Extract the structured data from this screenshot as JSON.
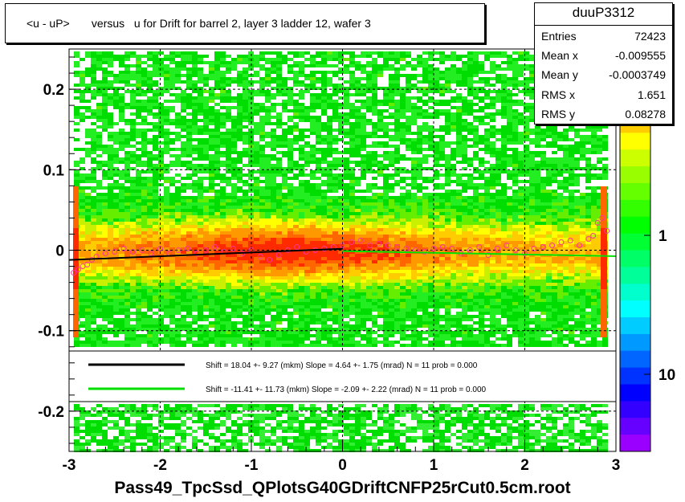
{
  "title": "<u - uP>       versus   u for Drift for barrel 2, layer 3 ladder 12, wafer 3",
  "stats": {
    "name": "duuP3312",
    "rows": [
      {
        "key": "Entries",
        "value": "72423"
      },
      {
        "key": "Mean x",
        "value": "-0.009555"
      },
      {
        "key": "Mean y",
        "value": "-0.0003749"
      },
      {
        "key": "RMS x",
        "value": "1.651"
      },
      {
        "key": "RMS y",
        "value": "0.08278"
      }
    ]
  },
  "xlabel": "Pass49_TpcSsd_QPlotsG40GDriftCNFP25rCut0.5cm.root",
  "legend": [
    {
      "text": "Shift =    18.04 +- 9.27 (mkm) Slope =     4.64 +- 1.75 (mrad)  N = 11 prob = 0.000",
      "color": "#000000"
    },
    {
      "text": "Shift =   -11.41 +- 11.73 (mkm) Slope =    -2.09 +- 2.22 (mrad)  N = 11 prob = 0.000",
      "color": "#00e000"
    }
  ],
  "chart_data": {
    "type": "heatmap",
    "xlim": [
      -3,
      3
    ],
    "ylim": [
      -0.25,
      0.25
    ],
    "x_ticks": [
      "-3",
      "-2",
      "-1",
      "0",
      "1",
      "2",
      "3"
    ],
    "y_ticks": [
      "-0.2",
      "-0.1",
      "0",
      "0.1",
      "0.2"
    ],
    "z_ticks": [
      "1",
      "10"
    ],
    "grid": true,
    "colorbar": "right",
    "fit_lines": [
      {
        "x": [
          -3,
          0
        ],
        "shift_mkm": 18.04,
        "slope_mrad": 4.64,
        "color": "#000000"
      },
      {
        "x": [
          0,
          3
        ],
        "shift_mkm": -11.41,
        "slope_mrad": -2.09,
        "color": "#00e000"
      }
    ],
    "profile_points": [
      [
        -2.95,
        -0.028
      ],
      [
        -2.9,
        -0.024
      ],
      [
        -2.85,
        -0.02
      ],
      [
        -2.8,
        -0.018
      ],
      [
        -2.75,
        -0.012
      ],
      [
        -2.7,
        -0.008
      ],
      [
        -2.6,
        -0.004
      ],
      [
        -2.5,
        -0.002
      ],
      [
        -2.4,
        0.002
      ],
      [
        -2.3,
        -0.002
      ],
      [
        -2.2,
        0.0
      ],
      [
        -2.1,
        -0.004
      ],
      [
        -2.0,
        0.002
      ],
      [
        -1.9,
        -0.004
      ],
      [
        -1.8,
        0.0
      ],
      [
        -1.7,
        0.002
      ],
      [
        -1.6,
        -0.004
      ],
      [
        -1.5,
        0.0
      ],
      [
        -1.4,
        0.004
      ],
      [
        -1.3,
        -0.002
      ],
      [
        -1.2,
        0.002
      ],
      [
        -1.1,
        -0.004
      ],
      [
        -1.0,
        0.0
      ],
      [
        -0.9,
        -0.008
      ],
      [
        -0.8,
        -0.012
      ],
      [
        -0.7,
        -0.006
      ],
      [
        -0.6,
        0.0
      ],
      [
        -0.5,
        0.004
      ],
      [
        -0.4,
        -0.002
      ],
      [
        -0.3,
        0.0
      ],
      [
        -0.2,
        0.002
      ],
      [
        -0.1,
        0.004
      ],
      [
        0.0,
        0.006
      ],
      [
        0.1,
        0.01
      ],
      [
        0.2,
        0.012
      ],
      [
        0.3,
        0.006
      ],
      [
        0.4,
        0.008
      ],
      [
        0.5,
        0.006
      ],
      [
        0.6,
        0.004
      ],
      [
        0.7,
        0.002
      ],
      [
        0.8,
        0.0
      ],
      [
        0.9,
        -0.002
      ],
      [
        1.0,
        0.002
      ],
      [
        1.1,
        0.004
      ],
      [
        1.2,
        0.002
      ],
      [
        1.3,
        -0.004
      ],
      [
        1.4,
        0.0
      ],
      [
        1.5,
        0.004
      ],
      [
        1.6,
        -0.006
      ],
      [
        1.7,
        0.002
      ],
      [
        1.8,
        0.006
      ],
      [
        1.9,
        0.0
      ],
      [
        2.0,
        -0.004
      ],
      [
        2.1,
        0.002
      ],
      [
        2.2,
        0.004
      ],
      [
        2.3,
        0.006
      ],
      [
        2.4,
        0.01
      ],
      [
        2.5,
        0.012
      ],
      [
        2.6,
        0.006
      ],
      [
        2.7,
        0.014
      ],
      [
        2.75,
        0.018
      ],
      [
        2.8,
        0.034
      ],
      [
        2.85,
        0.04
      ],
      [
        2.9,
        0.024
      ]
    ]
  }
}
